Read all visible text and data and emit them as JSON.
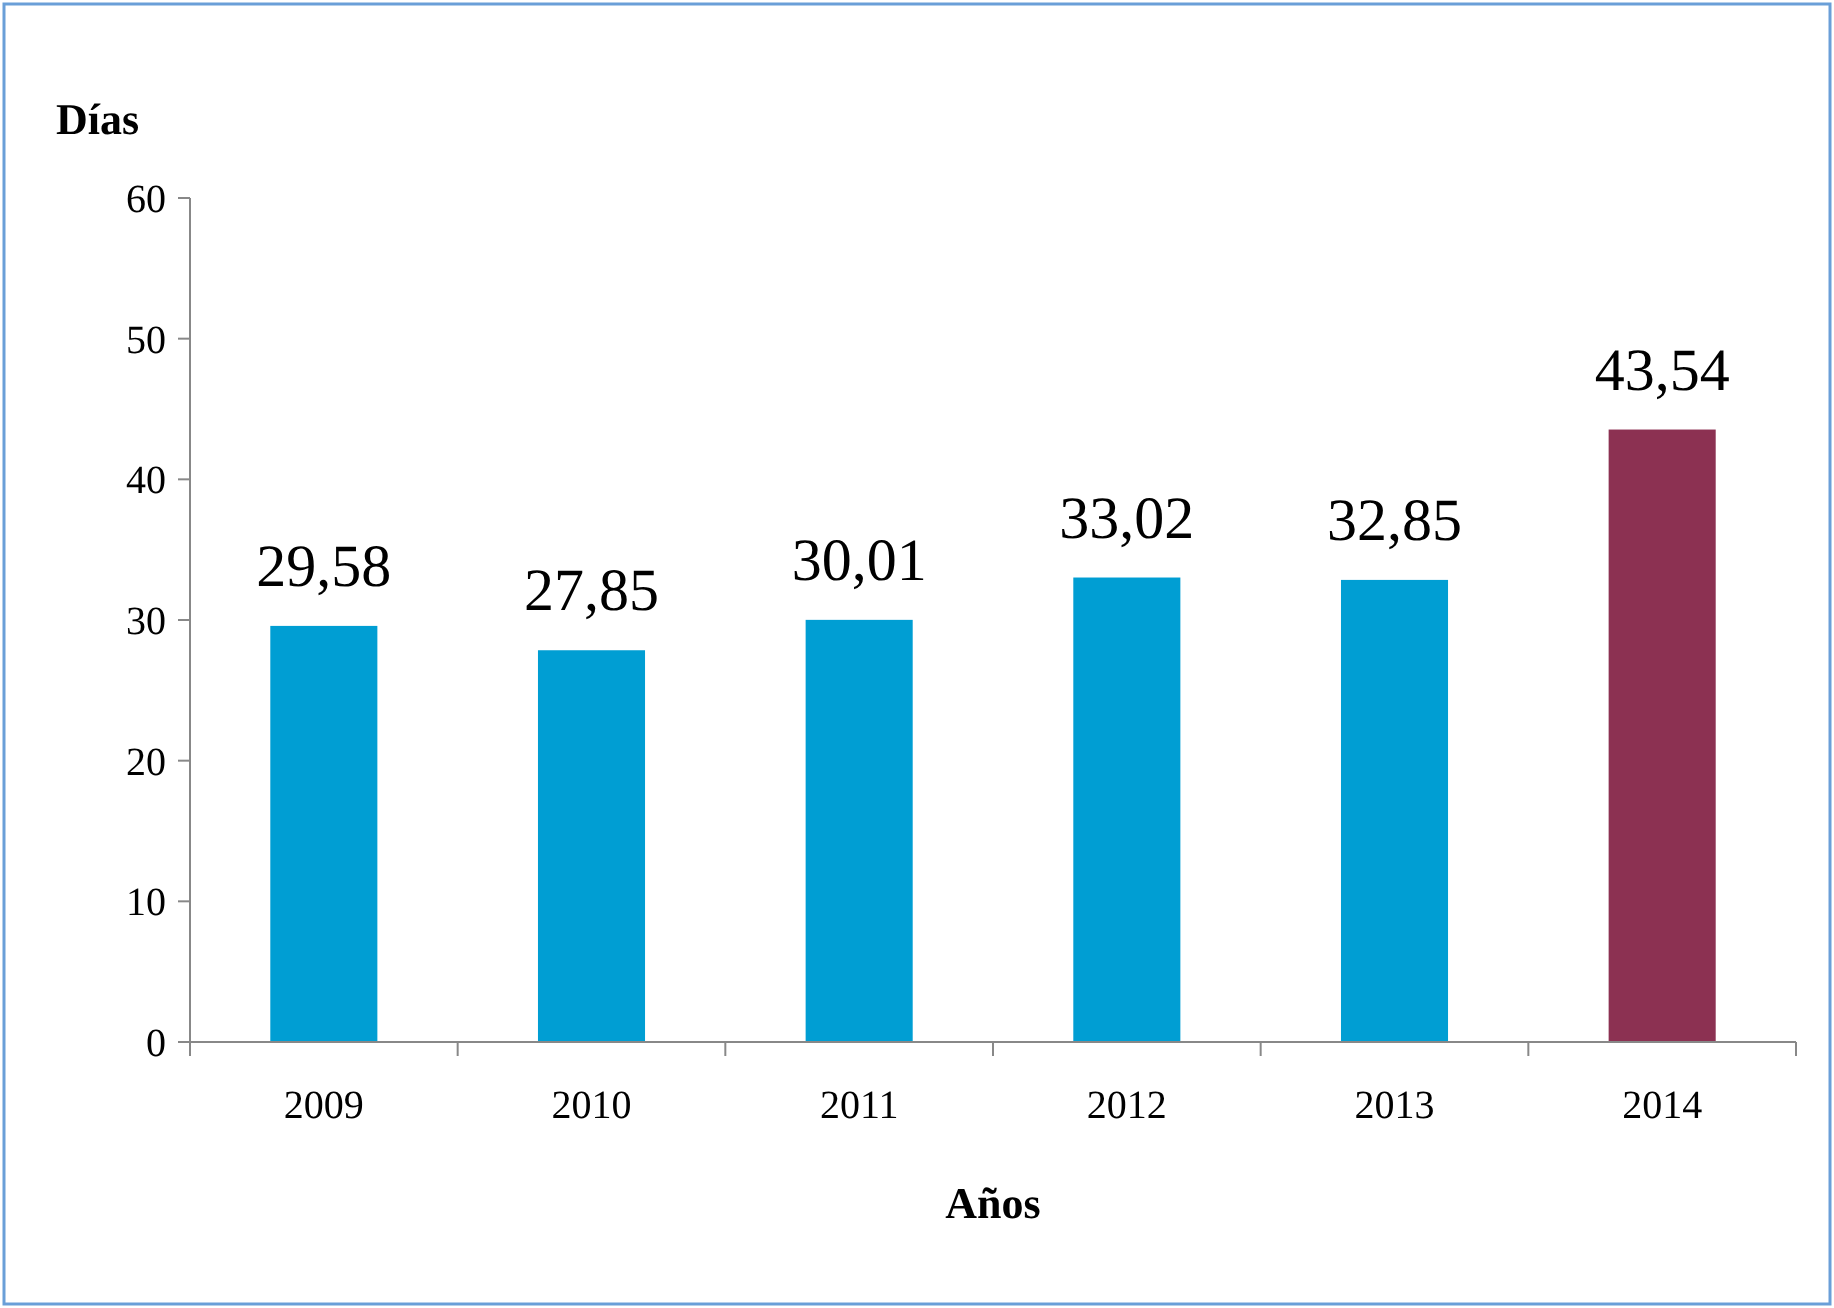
{
  "chart_data": {
    "type": "bar",
    "xlabel": "Años",
    "ylabel": "Días",
    "categories": [
      "2009",
      "2010",
      "2011",
      "2012",
      "2013",
      "2014"
    ],
    "values": [
      29.58,
      27.85,
      30.01,
      33.02,
      32.85,
      43.54
    ],
    "colors": [
      "#009ed3",
      "#009ed3",
      "#009ed3",
      "#009ed3",
      "#009ed3",
      "#8c3152"
    ],
    "value_labels": [
      "29,58",
      "27,85",
      "30,01",
      "33,02",
      "32,85",
      "43,54"
    ],
    "ylim": [
      0,
      60
    ],
    "yticks": [
      0,
      10,
      20,
      30,
      40,
      50,
      60
    ]
  }
}
